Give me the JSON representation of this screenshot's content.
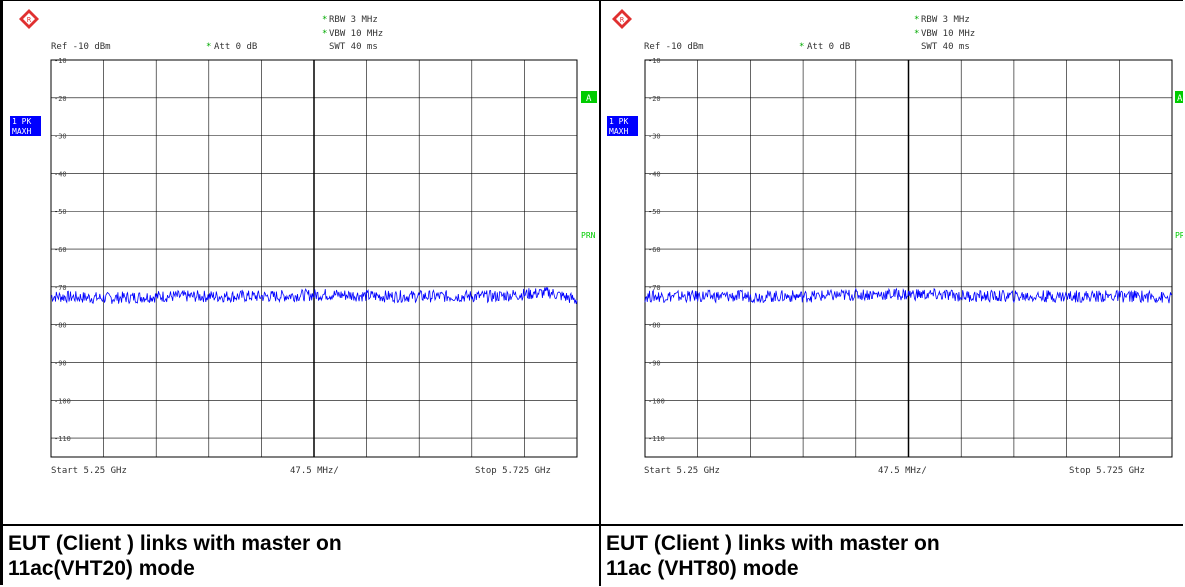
{
  "panels": [
    {
      "logo": "rohde-schwarz-logo",
      "ref_label": "Ref -10 dBm",
      "att_label": "Att  0 dB",
      "rbw_label": "RBW 3 MHz",
      "vbw_label": "VBW 10 MHz",
      "swt_label": "SWT 40 ms",
      "trace_badge_top": "1 PK",
      "trace_badge_bottom": "MAXH",
      "marker_a": "A",
      "marker_prn": "PRN",
      "start_label": "Start 5.25 GHz",
      "span_label": "47.5 MHz/",
      "stop_label": "Stop 5.725 GHz",
      "caption_line1": "EUT (Client ) links with master on",
      "caption_line2": "11ac(VHT20) mode"
    },
    {
      "logo": "rohde-schwarz-logo",
      "ref_label": "Ref -10 dBm",
      "att_label": "Att  0 dB",
      "rbw_label": "RBW 3 MHz",
      "vbw_label": "VBW 10 MHz",
      "swt_label": "SWT 40 ms",
      "trace_badge_top": "1 PK",
      "trace_badge_bottom": "MAXH",
      "marker_a": "A",
      "marker_prn": "PRN",
      "start_label": "Start 5.25 GHz",
      "span_label": "47.5 MHz/",
      "stop_label": "Stop 5.725 GHz",
      "caption_line1": "EUT (Client ) links with master on",
      "caption_line2": "11ac (VHT80) mode"
    }
  ],
  "colors": {
    "trace": "#0000ff",
    "grid": "#000000",
    "badge": "#0000ff",
    "marker": "#00cc00"
  },
  "chart_data": [
    {
      "type": "line",
      "x_range_ghz": [
        5.25,
        5.725
      ],
      "ylim": [
        -115,
        -10
      ],
      "yticks": [
        -10,
        -20,
        -30,
        -40,
        -50,
        -60,
        -70,
        -80,
        -90,
        -100,
        -110
      ],
      "x_divisions": 10,
      "grid": true,
      "series": [
        {
          "x": [
            5.25,
            5.3,
            5.35,
            5.4,
            5.45,
            5.5,
            5.55,
            5.6,
            5.65,
            5.7,
            5.725
          ],
          "y": [
            -72.5,
            -73,
            -72.5,
            -72.5,
            -72.5,
            -72,
            -72.5,
            -72.5,
            -72.5,
            -71.5,
            -73.5
          ]
        }
      ]
    },
    {
      "type": "line",
      "x_range_ghz": [
        5.25,
        5.725
      ],
      "ylim": [
        -115,
        -10
      ],
      "yticks": [
        -10,
        -20,
        -30,
        -40,
        -50,
        -60,
        -70,
        -80,
        -90,
        -100,
        -110
      ],
      "x_divisions": 10,
      "grid": true,
      "series": [
        {
          "x": [
            5.25,
            5.3,
            5.35,
            5.4,
            5.45,
            5.5,
            5.55,
            5.6,
            5.65,
            5.7,
            5.725
          ],
          "y": [
            -72.5,
            -72.5,
            -72.5,
            -72.5,
            -72,
            -72,
            -72.5,
            -72.5,
            -72.5,
            -72.5,
            -73
          ]
        }
      ]
    }
  ]
}
